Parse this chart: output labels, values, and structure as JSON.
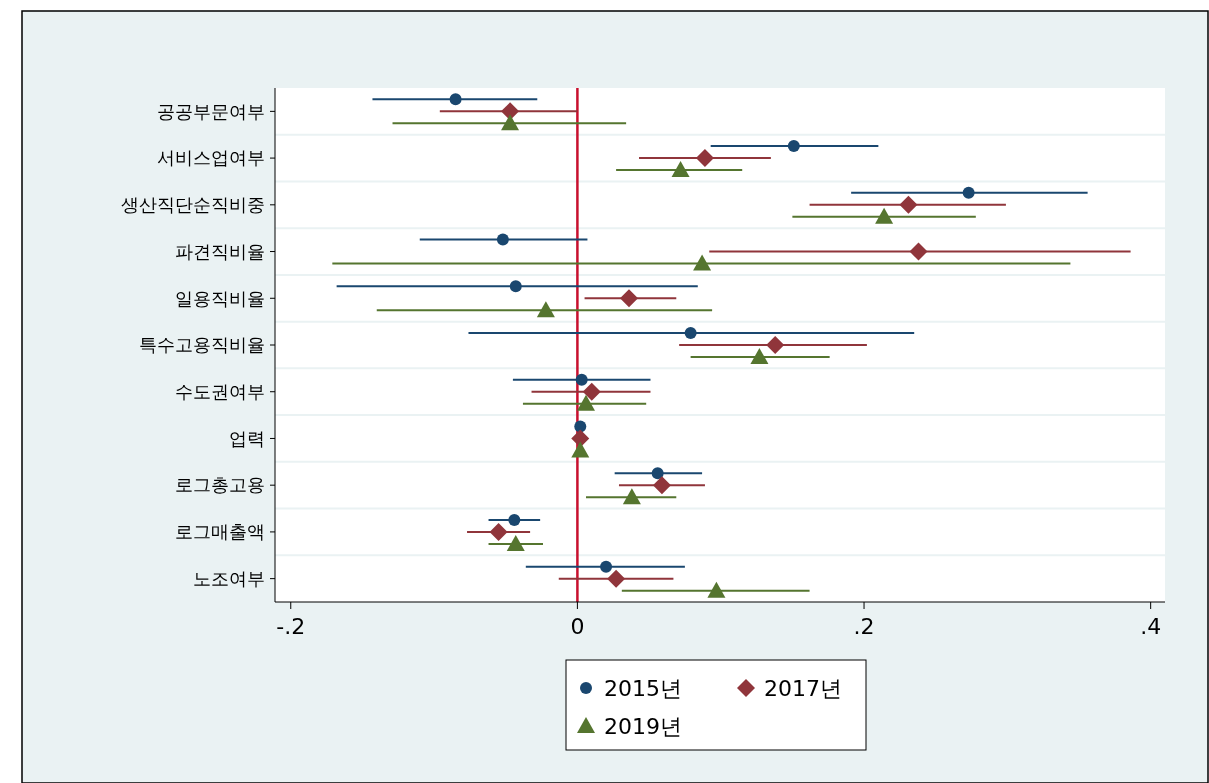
{
  "chart_data": {
    "type": "scatter",
    "orientation": "horizontal",
    "categories": [
      "공공부문여부",
      "서비스업여부",
      "생산직단순직비중",
      "파견직비율",
      "일용직비율",
      "특수고용직비율",
      "수도권여부",
      "업력",
      "로그총고용",
      "로그매출액",
      "노조여부"
    ],
    "series": [
      {
        "name": "2015년",
        "color": "#1a476f",
        "marker": "circle",
        "values": [
          -0.085,
          0.151,
          0.273,
          -0.052,
          -0.043,
          0.079,
          0.003,
          0.002,
          0.056,
          -0.044,
          0.02
        ],
        "errors": [
          [
            -0.143,
            -0.028
          ],
          [
            0.093,
            0.21
          ],
          [
            0.191,
            0.356
          ],
          [
            -0.11,
            0.007
          ],
          [
            -0.168,
            0.084
          ],
          [
            -0.076,
            0.235
          ],
          [
            -0.045,
            0.051
          ],
          [
            0.001,
            0.003
          ],
          [
            0.026,
            0.087
          ],
          [
            -0.062,
            -0.026
          ],
          [
            -0.036,
            0.075
          ]
        ]
      },
      {
        "name": "2017년",
        "color": "#90353b",
        "marker": "diamond",
        "values": [
          -0.047,
          0.089,
          0.231,
          0.238,
          0.036,
          0.138,
          0.01,
          0.002,
          0.059,
          -0.055,
          0.027
        ],
        "errors": [
          [
            -0.096,
            0.0
          ],
          [
            0.043,
            0.135
          ],
          [
            0.162,
            0.299
          ],
          [
            0.092,
            0.386
          ],
          [
            0.005,
            0.069
          ],
          [
            0.071,
            0.202
          ],
          [
            -0.032,
            0.051
          ],
          [
            0.001,
            0.003
          ],
          [
            0.029,
            0.089
          ],
          [
            -0.077,
            -0.033
          ],
          [
            -0.013,
            0.067
          ]
        ]
      },
      {
        "name": "2019년",
        "color": "#55752f",
        "marker": "triangle",
        "values": [
          -0.047,
          0.072,
          0.214,
          0.087,
          -0.022,
          0.127,
          0.006,
          0.002,
          0.038,
          -0.043,
          0.097
        ],
        "errors": [
          [
            -0.129,
            0.034
          ],
          [
            0.027,
            0.115
          ],
          [
            0.15,
            0.278
          ],
          [
            -0.171,
            0.344
          ],
          [
            -0.14,
            0.094
          ],
          [
            0.079,
            0.176
          ],
          [
            -0.038,
            0.048
          ],
          [
            0.001,
            0.003
          ],
          [
            0.006,
            0.069
          ],
          [
            -0.062,
            -0.024
          ],
          [
            0.031,
            0.162
          ]
        ]
      }
    ],
    "xlim": [
      -0.211,
      0.41
    ],
    "xticks": [
      {
        "value": -0.2,
        "label": "-.2"
      },
      0,
      {
        "value": 0.2,
        "label": ".2"
      },
      {
        "value": 0.4,
        "label": ".4"
      }
    ],
    "ref_lines": [
      {
        "axis": "x",
        "value": 0,
        "color": "#c8102e"
      }
    ],
    "grid": true,
    "legend": "bottom"
  }
}
